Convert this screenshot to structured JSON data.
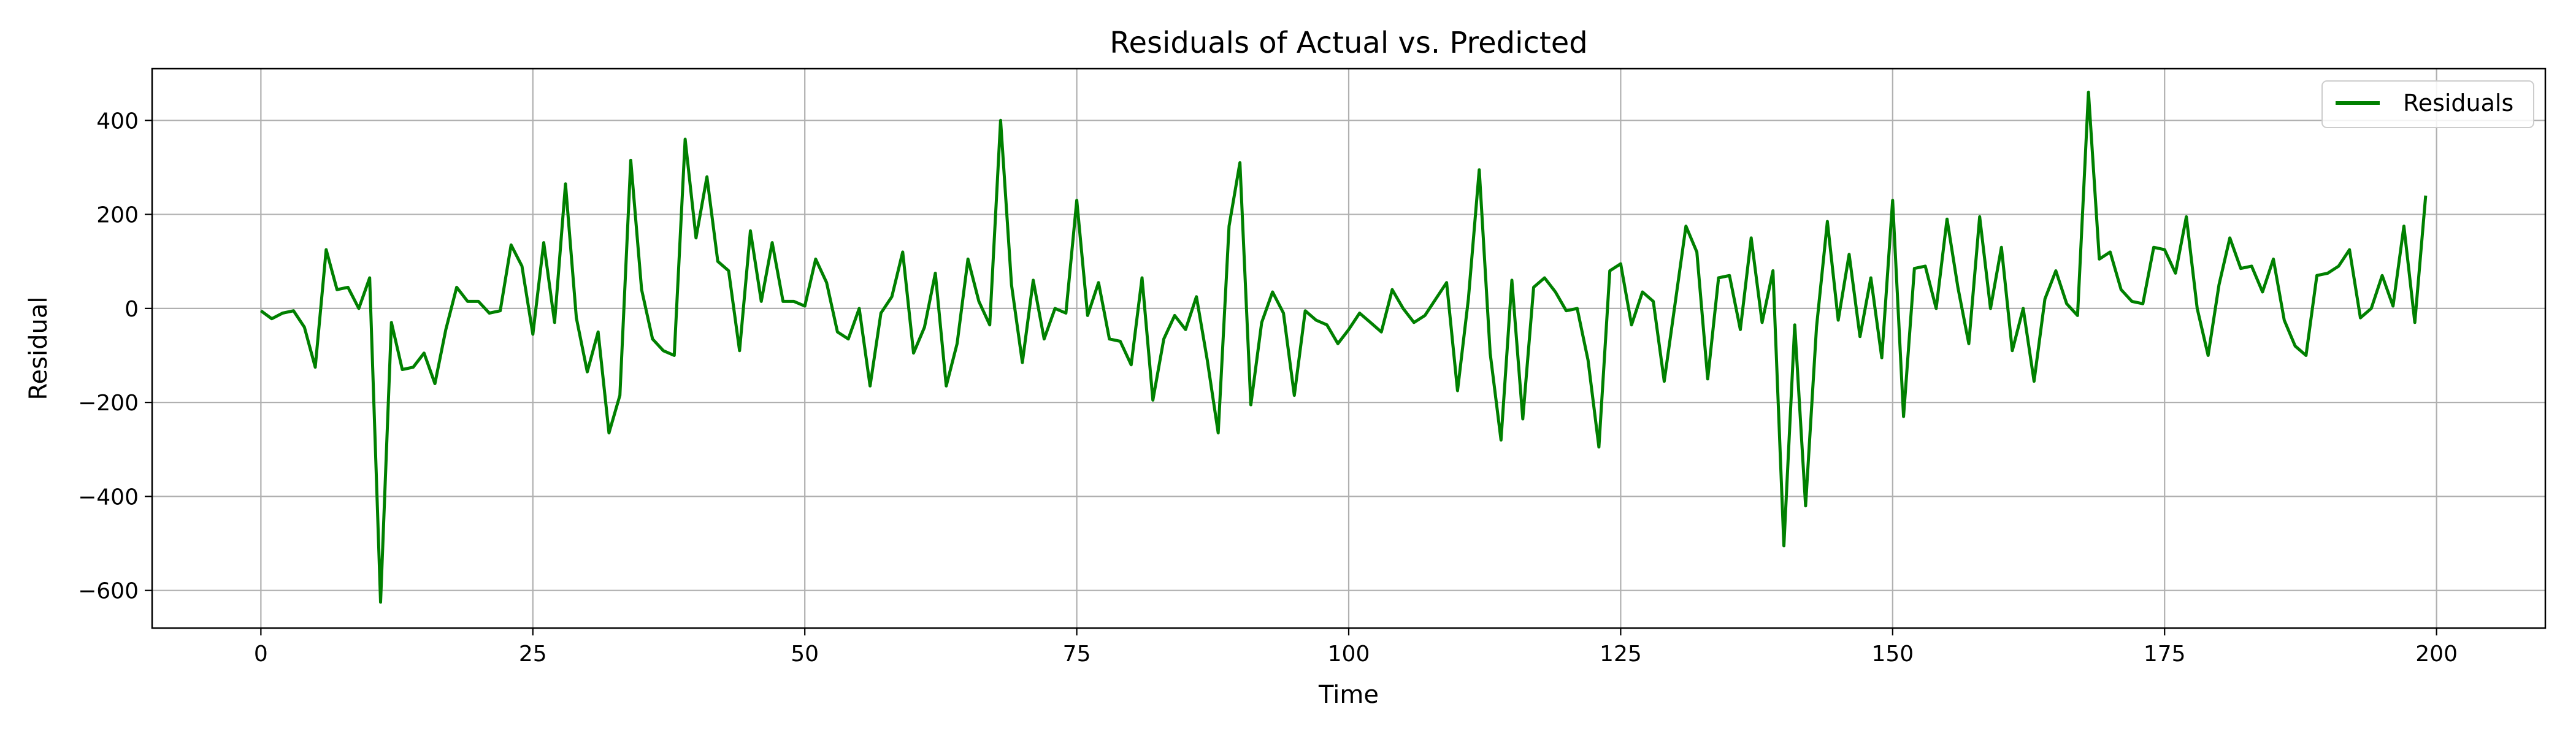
{
  "chart_data": {
    "type": "line",
    "title": "Residuals of Actual vs. Predicted",
    "xlabel": "Time",
    "ylabel": "Residual",
    "xlim": [
      -10,
      210
    ],
    "ylim": [
      -680,
      510
    ],
    "xticks": [
      0,
      25,
      50,
      75,
      100,
      125,
      150,
      175,
      200
    ],
    "yticks": [
      -600,
      -400,
      -200,
      0,
      200,
      400
    ],
    "grid": true,
    "legend": {
      "placement": "top-right",
      "entries": [
        "Residuals"
      ]
    },
    "colors": {
      "series": "#008000",
      "grid": "#b0b0b0",
      "axes": "#000000"
    },
    "series": [
      {
        "name": "Residuals",
        "x": [
          0,
          1,
          2,
          3,
          4,
          5,
          6,
          7,
          8,
          9,
          10,
          11,
          12,
          13,
          14,
          15,
          16,
          17,
          18,
          19,
          20,
          21,
          22,
          23,
          24,
          25,
          26,
          27,
          28,
          29,
          30,
          31,
          32,
          33,
          34,
          35,
          36,
          37,
          38,
          39,
          40,
          41,
          42,
          43,
          44,
          45,
          46,
          47,
          48,
          49,
          50,
          51,
          52,
          53,
          54,
          55,
          56,
          57,
          58,
          59,
          60,
          61,
          62,
          63,
          64,
          65,
          66,
          67,
          68,
          69,
          70,
          71,
          72,
          73,
          74,
          75,
          76,
          77,
          78,
          79,
          80,
          81,
          82,
          83,
          84,
          85,
          86,
          87,
          88,
          89,
          90,
          91,
          92,
          93,
          94,
          95,
          96,
          97,
          98,
          99,
          100,
          101,
          102,
          103,
          104,
          105,
          106,
          107,
          108,
          109,
          110,
          111,
          112,
          113,
          114,
          115,
          116,
          117,
          118,
          119,
          120,
          121,
          122,
          123,
          124,
          125,
          126,
          127,
          128,
          129,
          130,
          131,
          132,
          133,
          134,
          135,
          136,
          137,
          138,
          139,
          140,
          141,
          142,
          143,
          144,
          145,
          146,
          147,
          148,
          149,
          150,
          151,
          152,
          153,
          154,
          155,
          156,
          157,
          158,
          159,
          160,
          161,
          162,
          163,
          164,
          165,
          166,
          167,
          168,
          169,
          170,
          171,
          172,
          173,
          174,
          175,
          176,
          177,
          178,
          179,
          180,
          181,
          182,
          183,
          184,
          185,
          186,
          187,
          188,
          189,
          190,
          191,
          192,
          193,
          194,
          195,
          196,
          197,
          198,
          199
        ],
        "values": [
          -5,
          -22,
          -10,
          -5,
          -40,
          -125,
          125,
          40,
          45,
          0,
          65,
          -625,
          -30,
          -130,
          -125,
          -95,
          -160,
          -45,
          45,
          15,
          15,
          -10,
          -5,
          135,
          90,
          -55,
          140,
          -30,
          265,
          -20,
          -135,
          -50,
          -265,
          -185,
          315,
          40,
          -65,
          -90,
          -100,
          360,
          150,
          280,
          100,
          80,
          -90,
          165,
          15,
          140,
          15,
          15,
          5,
          105,
          55,
          -50,
          -65,
          0,
          -165,
          -10,
          25,
          120,
          -95,
          -40,
          75,
          -165,
          -75,
          105,
          15,
          -35,
          400,
          50,
          -115,
          60,
          -65,
          0,
          -10,
          230,
          -15,
          55,
          -65,
          -70,
          -120,
          65,
          -195,
          -65,
          -15,
          -45,
          25,
          -110,
          -265,
          175,
          310,
          -205,
          -30,
          35,
          -10,
          -185,
          -5,
          -25,
          -35,
          -75,
          -45,
          -10,
          -30,
          -50,
          40,
          0,
          -30,
          -15,
          20,
          55,
          -175,
          20,
          295,
          -95,
          -280,
          60,
          -235,
          45,
          65,
          35,
          -5,
          0,
          -110,
          -295,
          80,
          95,
          -35,
          35,
          15,
          -155,
          10,
          175,
          120,
          -150,
          65,
          70,
          -45,
          150,
          -30,
          80,
          -505,
          -35,
          -420,
          -40,
          185,
          -25,
          115,
          -60,
          65,
          -105,
          230,
          -230,
          85,
          90,
          0,
          190,
          45,
          -75,
          195,
          0,
          130,
          -90,
          0,
          -155,
          20,
          80,
          10,
          -15,
          460,
          105,
          120,
          40,
          15,
          10,
          130,
          125,
          75,
          195,
          0,
          -100,
          50,
          150,
          85,
          90,
          35,
          105,
          -25,
          -80,
          -100,
          70,
          75,
          90,
          125,
          -20,
          0,
          70,
          5,
          175,
          -30,
          240
        ]
      }
    ]
  }
}
